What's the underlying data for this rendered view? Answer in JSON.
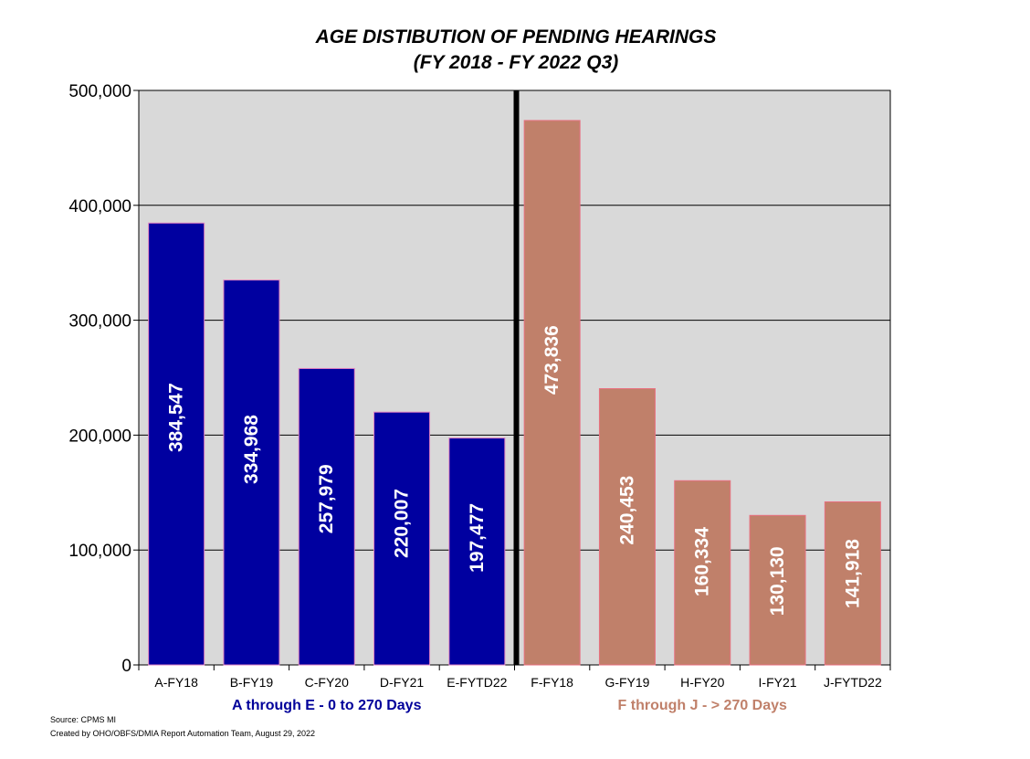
{
  "chart_data": {
    "type": "bar",
    "title": "AGE DISTIBUTION OF PENDING HEARINGS",
    "subtitle": "(FY 2018 - FY 2022 Q3)",
    "categories": [
      "A-FY18",
      "B-FY19",
      "C-FY20",
      "D-FY21",
      "E-FYTD22",
      "F-FY18",
      "G-FY19",
      "H-FY20",
      "I-FY21",
      "J-FYTD22"
    ],
    "values": [
      384547,
      334968,
      257979,
      220007,
      197477,
      473836,
      240453,
      160334,
      130130,
      141918
    ],
    "value_labels": [
      "384,547",
      "334,968",
      "257,979",
      "220,007",
      "197,477",
      "473,836",
      "240,453",
      "160,334",
      "130,130",
      "141,918"
    ],
    "groups": [
      {
        "label": "A through E - 0 to 270 Days",
        "color": "#0000a0",
        "text_color": "#00009a",
        "start": 0,
        "end": 4
      },
      {
        "label": "F through J - > 270 Days",
        "color": "#c0806a",
        "text_color": "#c0806a",
        "start": 5,
        "end": 9
      }
    ],
    "ylim": [
      0,
      500000
    ],
    "yticks": [
      0,
      100000,
      200000,
      300000,
      400000,
      500000
    ],
    "ytick_labels": [
      "0",
      "100,000",
      "200,000",
      "300,000",
      "400,000",
      "500,000"
    ],
    "grid": true,
    "xlabel": "",
    "ylabel": ""
  },
  "footer": {
    "source": "Source: CPMS MI",
    "created": "Created by OHO/OBFS/DMIA Report Automation Team, August 29, 2022"
  }
}
